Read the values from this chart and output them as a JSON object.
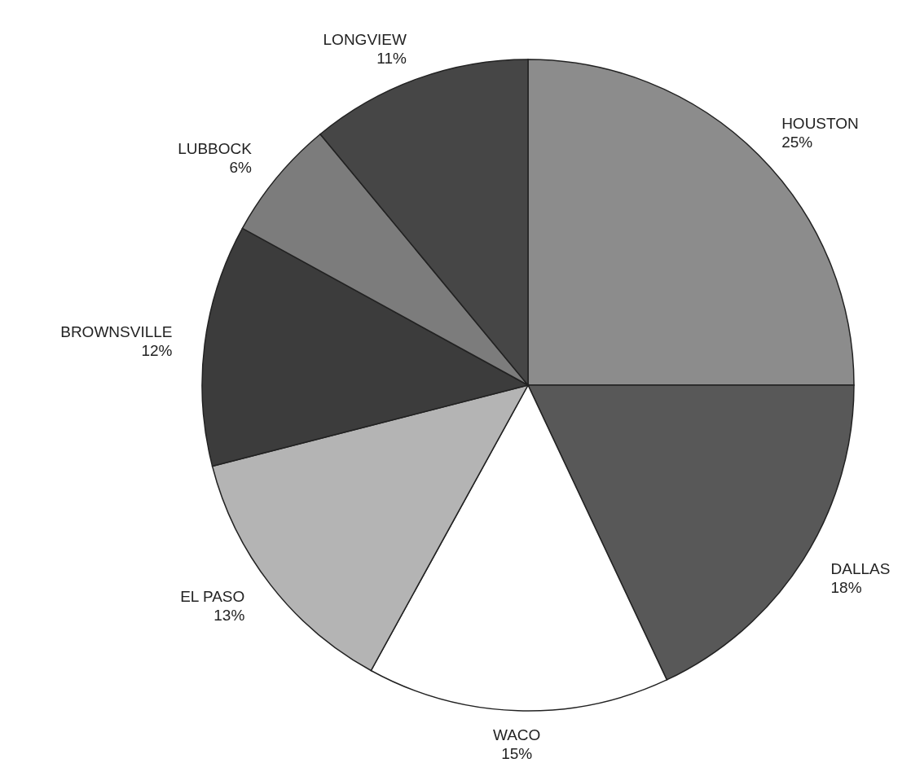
{
  "chart_data": {
    "type": "pie",
    "categories": [
      "HOUSTON",
      "DALLAS",
      "WACO",
      "EL PASO",
      "BROWNSVILLE",
      "LUBBOCK",
      "LONGVIEW"
    ],
    "values": [
      25,
      18,
      15,
      13,
      12,
      6,
      11
    ],
    "value_labels": [
      "25%",
      "18%",
      "15%",
      "13%",
      "12%",
      "6%",
      "11%"
    ],
    "colors": [
      "#8c8c8c",
      "#585858",
      "#ffffff",
      "#b4b4b4",
      "#3c3c3c",
      "#7c7c7c",
      "#464646"
    ]
  }
}
